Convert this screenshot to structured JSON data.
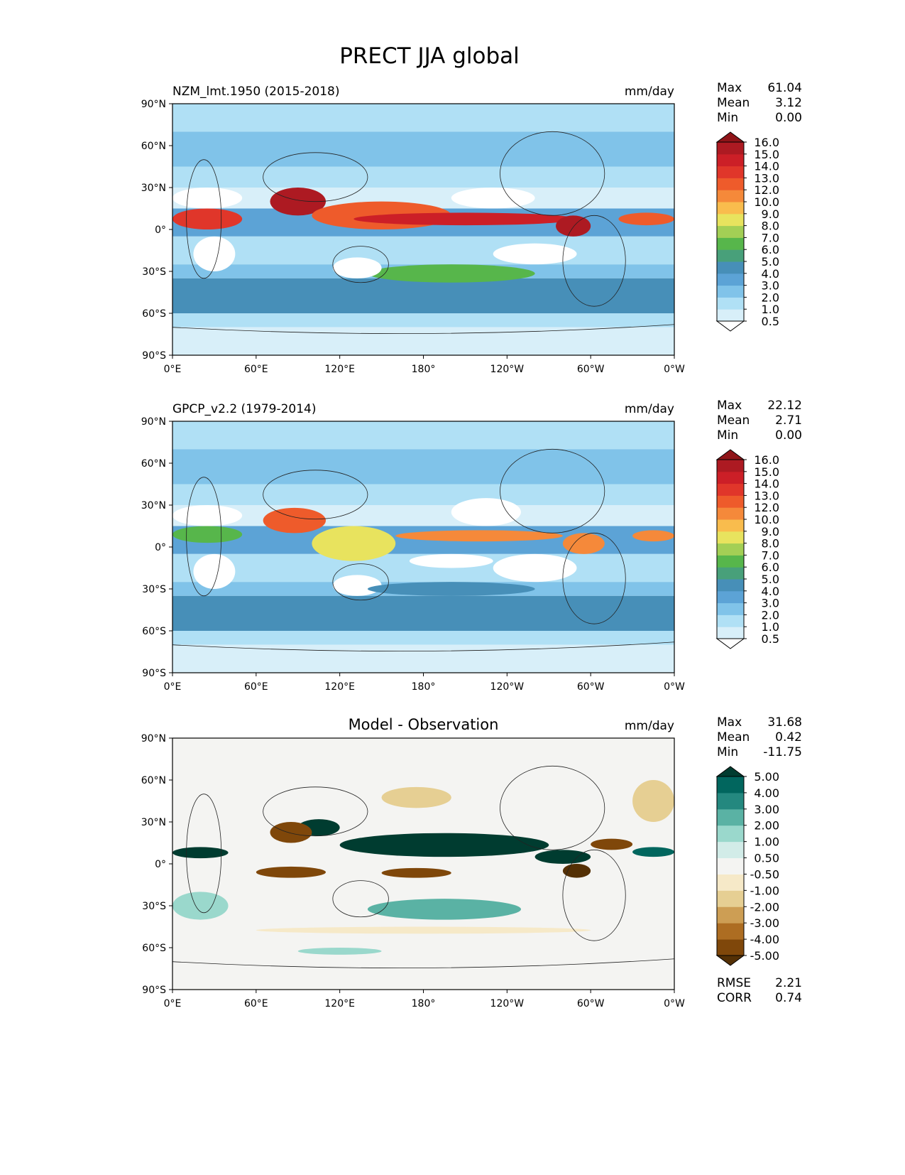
{
  "chart_data": {
    "type": "heatmap",
    "title": "PRECT JJA global",
    "panels": [
      {
        "title_left": "NZM_lmt.1950 (2015-2018)",
        "title_center": "",
        "units": "mm/day",
        "stats": [
          {
            "label": "Max",
            "value": "61.04"
          },
          {
            "label": "Mean",
            "value": "3.12"
          },
          {
            "label": "Min",
            "value": "0.00"
          }
        ],
        "colorbar": "precip",
        "extra_stats": []
      },
      {
        "title_left": "GPCP_v2.2 (1979-2014)",
        "title_center": "",
        "units": "mm/day",
        "stats": [
          {
            "label": "Max",
            "value": "22.12"
          },
          {
            "label": "Mean",
            "value": "2.71"
          },
          {
            "label": "Min",
            "value": "0.00"
          }
        ],
        "colorbar": "precip",
        "extra_stats": []
      },
      {
        "title_left": "",
        "title_center": "Model - Observation",
        "units": "mm/day",
        "stats": [
          {
            "label": "Max",
            "value": "31.68"
          },
          {
            "label": "Mean",
            "value": "0.42"
          },
          {
            "label": "Min",
            "value": "-11.75"
          }
        ],
        "colorbar": "diff",
        "extra_stats": [
          {
            "label": "RMSE",
            "value": "2.21"
          },
          {
            "label": "CORR",
            "value": "0.74"
          }
        ]
      }
    ],
    "xticks": [
      "0°E",
      "60°E",
      "120°E",
      "180°",
      "120°W",
      "60°W",
      "0°W"
    ],
    "yticks": [
      "90°N",
      "60°N",
      "30°N",
      "0°",
      "30°S",
      "60°S",
      "90°S"
    ],
    "xlim": [
      0,
      360
    ],
    "ylim": [
      -90,
      90
    ],
    "colorbars": {
      "precip": {
        "labels": [
          "0.5",
          "1.0",
          "2.0",
          "3.0",
          "4.0",
          "5.0",
          "6.0",
          "7.0",
          "8.0",
          "9.0",
          "10.0",
          "12.0",
          "13.0",
          "14.0",
          "15.0",
          "16.0"
        ],
        "colors": [
          "#ffffff",
          "#d8eff9",
          "#b0e0f5",
          "#80c3e9",
          "#5ca3d6",
          "#478fb8",
          "#48a07a",
          "#57b64b",
          "#a3cf55",
          "#e8e35e",
          "#f9bc4d",
          "#f5893a",
          "#ee5b2b",
          "#e0362a",
          "#cc1f27",
          "#ad1a22",
          "#8f1418"
        ]
      },
      "diff": {
        "labels": [
          "-5.00",
          "-4.00",
          "-3.00",
          "-2.00",
          "-1.00",
          "-0.50",
          "0.50",
          "1.00",
          "2.00",
          "3.00",
          "4.00",
          "5.00"
        ],
        "colors": [
          "#543005",
          "#7f470a",
          "#ad6d22",
          "#cd9e54",
          "#e6cf93",
          "#f6e9c8",
          "#f4f4f2",
          "#d2ece8",
          "#9ad8cc",
          "#5ab2a4",
          "#24887f",
          "#01665e",
          "#003c30"
        ]
      }
    }
  }
}
